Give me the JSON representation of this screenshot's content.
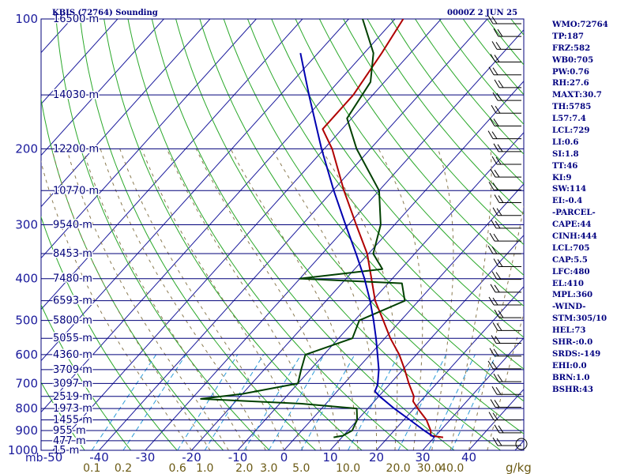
{
  "header": {
    "station": "KBIS (72764) Sounding",
    "time": "0000Z  2 JUN 25"
  },
  "chart_data": {
    "type": "line",
    "chart_kind": "skew-T log-P sounding",
    "pressure_range_mb": [
      1000,
      100
    ],
    "temperature_range_c": [
      -50,
      50
    ],
    "temperature_ticks": [
      "-50",
      "-40",
      "-30",
      "-20",
      "-10",
      "0",
      "10",
      "20",
      "30",
      "40"
    ],
    "pressure_unit_label": "mb",
    "pressure_levels": [
      100,
      150,
      200,
      250,
      300,
      350,
      400,
      450,
      500,
      550,
      600,
      650,
      700,
      750,
      800,
      850,
      900,
      950,
      1000
    ],
    "pressure_labels": [
      {
        "p": 100,
        "text": "100"
      },
      {
        "p": 200,
        "text": "200"
      },
      {
        "p": 300,
        "text": "300"
      },
      {
        "p": 400,
        "text": "400"
      },
      {
        "p": 500,
        "text": "500"
      },
      {
        "p": 600,
        "text": "600"
      },
      {
        "p": 700,
        "text": "700"
      },
      {
        "p": 800,
        "text": "800"
      },
      {
        "p": 900,
        "text": "900"
      },
      {
        "p": 1000,
        "text": "1000"
      }
    ],
    "height_labels": [
      {
        "p": 100,
        "text": "16500 m"
      },
      {
        "p": 150,
        "text": "14030 m"
      },
      {
        "p": 200,
        "text": "12200 m"
      },
      {
        "p": 250,
        "text": "10770 m"
      },
      {
        "p": 300,
        "text": "9540 m"
      },
      {
        "p": 350,
        "text": "8453 m"
      },
      {
        "p": 400,
        "text": "7480 m"
      },
      {
        "p": 450,
        "text": "6593 m"
      },
      {
        "p": 500,
        "text": "5800 m"
      },
      {
        "p": 550,
        "text": "5055 m"
      },
      {
        "p": 600,
        "text": "4360 m"
      },
      {
        "p": 650,
        "text": "3709 m"
      },
      {
        "p": 700,
        "text": "3097 m"
      },
      {
        "p": 750,
        "text": "2519 m"
      },
      {
        "p": 800,
        "text": "1973 m"
      },
      {
        "p": 850,
        "text": "1455 m"
      },
      {
        "p": 900,
        "text": "955 m"
      },
      {
        "p": 950,
        "text": "477 m"
      },
      {
        "p": 1000,
        "text": "15 m"
      }
    ],
    "mixing_ratio_labels": [
      "0.1",
      "0.2",
      "0.6",
      "1.0",
      "2.0",
      "3.0",
      "5.0",
      "10.0",
      "20.0",
      "30.0",
      "40.0"
    ],
    "mixing_ratio_unit": "g/kg",
    "series": [
      {
        "role": "temperature",
        "color": "#b00000",
        "points": [
          {
            "p": 933,
            "t": 31.9
          },
          {
            "p": 925,
            "t": 28.9
          },
          {
            "p": 900,
            "t": 27.9
          },
          {
            "p": 850,
            "t": 24.9
          },
          {
            "p": 800,
            "t": 20.8
          },
          {
            "p": 770,
            "t": 18.4
          },
          {
            "p": 750,
            "t": 17.6
          },
          {
            "p": 700,
            "t": 14.0
          },
          {
            "p": 650,
            "t": 10.4
          },
          {
            "p": 600,
            "t": 6.3
          },
          {
            "p": 550,
            "t": 1.2
          },
          {
            "p": 500,
            "t": -3.8
          },
          {
            "p": 450,
            "t": -9.4
          },
          {
            "p": 400,
            "t": -14.5
          },
          {
            "p": 350,
            "t": -20.3
          },
          {
            "p": 300,
            "t": -28.3
          },
          {
            "p": 250,
            "t": -37.6
          },
          {
            "p": 200,
            "t": -48.3
          },
          {
            "p": 180,
            "t": -54.2
          },
          {
            "p": 150,
            "t": -54.2
          },
          {
            "p": 120,
            "t": -56.2
          },
          {
            "p": 100,
            "t": -58.2
          }
        ]
      },
      {
        "role": "dewpoint",
        "color": "#004000",
        "points": [
          {
            "p": 933,
            "t": 8.2
          },
          {
            "p": 925,
            "t": 9.9
          },
          {
            "p": 900,
            "t": 10.9
          },
          {
            "p": 850,
            "t": 9.9
          },
          {
            "p": 800,
            "t": 7.6
          },
          {
            "p": 780,
            "t": -5.0
          },
          {
            "p": 760,
            "t": -28.0
          },
          {
            "p": 740,
            "t": -20.0
          },
          {
            "p": 700,
            "t": -10.0
          },
          {
            "p": 650,
            "t": -12.0
          },
          {
            "p": 600,
            "t": -14.0
          },
          {
            "p": 550,
            "t": -7.0
          },
          {
            "p": 500,
            "t": -9.0
          },
          {
            "p": 450,
            "t": -3.0
          },
          {
            "p": 410,
            "t": -7.0
          },
          {
            "p": 400,
            "t": -30.0
          },
          {
            "p": 380,
            "t": -14.0
          },
          {
            "p": 350,
            "t": -19.0
          },
          {
            "p": 300,
            "t": -23.0
          },
          {
            "p": 250,
            "t": -30.0
          },
          {
            "p": 200,
            "t": -43.0
          },
          {
            "p": 170,
            "t": -51.0
          },
          {
            "p": 140,
            "t": -53.0
          },
          {
            "p": 120,
            "t": -58.0
          },
          {
            "p": 100,
            "t": -67.0
          }
        ]
      },
      {
        "role": "parcel",
        "color": "#0000b0",
        "points": [
          {
            "p": 933,
            "t": 30.0
          },
          {
            "p": 900,
            "t": 26.5
          },
          {
            "p": 850,
            "t": 21.3
          },
          {
            "p": 800,
            "t": 15.7
          },
          {
            "p": 750,
            "t": 10.2
          },
          {
            "p": 730,
            "t": 8.2
          },
          {
            "p": 705,
            "t": 7.5
          },
          {
            "p": 650,
            "t": 4.8
          },
          {
            "p": 600,
            "t": 1.6
          },
          {
            "p": 550,
            "t": -1.9
          },
          {
            "p": 500,
            "t": -5.9
          },
          {
            "p": 450,
            "t": -10.5
          },
          {
            "p": 400,
            "t": -16.0
          },
          {
            "p": 350,
            "t": -22.7
          },
          {
            "p": 300,
            "t": -30.6
          },
          {
            "p": 250,
            "t": -39.8
          },
          {
            "p": 200,
            "t": -50.6
          },
          {
            "p": 150,
            "t": -63.8
          },
          {
            "p": 120,
            "t": -73.8
          }
        ]
      }
    ],
    "wind_barbs_at_right_edge": true
  },
  "stats": [
    "WMO:72764",
    "TP:187",
    "FRZ:582",
    "WB0:705",
    "PW:0.76",
    "RH:27.6",
    "MAXT:30.7",
    "TH:5785",
    "L57:7.4",
    "LCL:729",
    "LI:0.6",
    "SI:1.8",
    "TT:46",
    "KI:9",
    "SW:114",
    "EI:-0.4",
    "-PARCEL-",
    "CAPE:44",
    "CINH:444",
    "LCL:705",
    "CAP:5.5",
    "LFC:480",
    "EL:410",
    "MPL:360",
    "-WIND-",
    "STM:305/10",
    "HEL:73",
    "SHR-:0.0",
    "SRDS:-149",
    "EHI:0.0",
    "BRN:1.0",
    "BSHR:43"
  ],
  "colors": {
    "isobar": "#00007a",
    "skewed_isotherm": "#1a1a9c",
    "dry_adiabat": "#2aa82a",
    "moist_adiabat": "#8a7a50",
    "mixing_ratio": "#2a9ad8",
    "temperature": "#b00000",
    "dewpoint": "#004000",
    "parcel": "#0000b0",
    "labels": "#000080",
    "mixing_ratio_labels": "#6b5a14"
  }
}
